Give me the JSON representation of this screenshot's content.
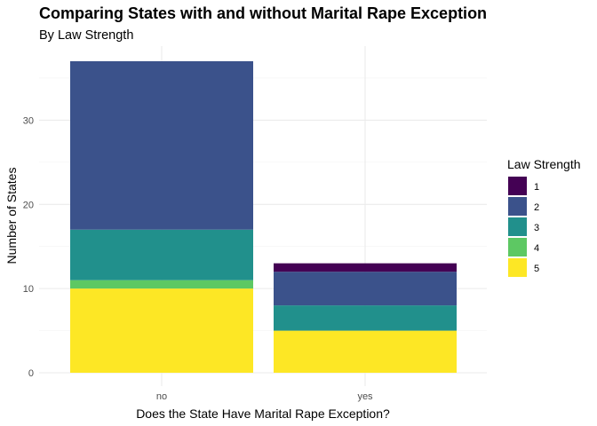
{
  "chart_data": {
    "type": "bar",
    "stacked": true,
    "title": "Comparing States with and without Marital Rape Exception",
    "subtitle": "By Law Strength",
    "xlabel": "Does the State Have Marital Rape Exception?",
    "ylabel": "Number of States",
    "categories": [
      "no",
      "yes"
    ],
    "ylim": [
      0,
      37
    ],
    "yticks": [
      0,
      10,
      20,
      30
    ],
    "grid": true,
    "legend": {
      "title": "Law Strength",
      "position": "right"
    },
    "series": [
      {
        "name": "1",
        "color": "#440154",
        "values": [
          0,
          1
        ]
      },
      {
        "name": "2",
        "color": "#3B528B",
        "values": [
          20,
          4
        ]
      },
      {
        "name": "3",
        "color": "#21908C",
        "values": [
          6,
          3
        ]
      },
      {
        "name": "4",
        "color": "#5DC863",
        "values": [
          1,
          0
        ]
      },
      {
        "name": "5",
        "color": "#FDE725",
        "values": [
          10,
          5
        ]
      }
    ]
  }
}
